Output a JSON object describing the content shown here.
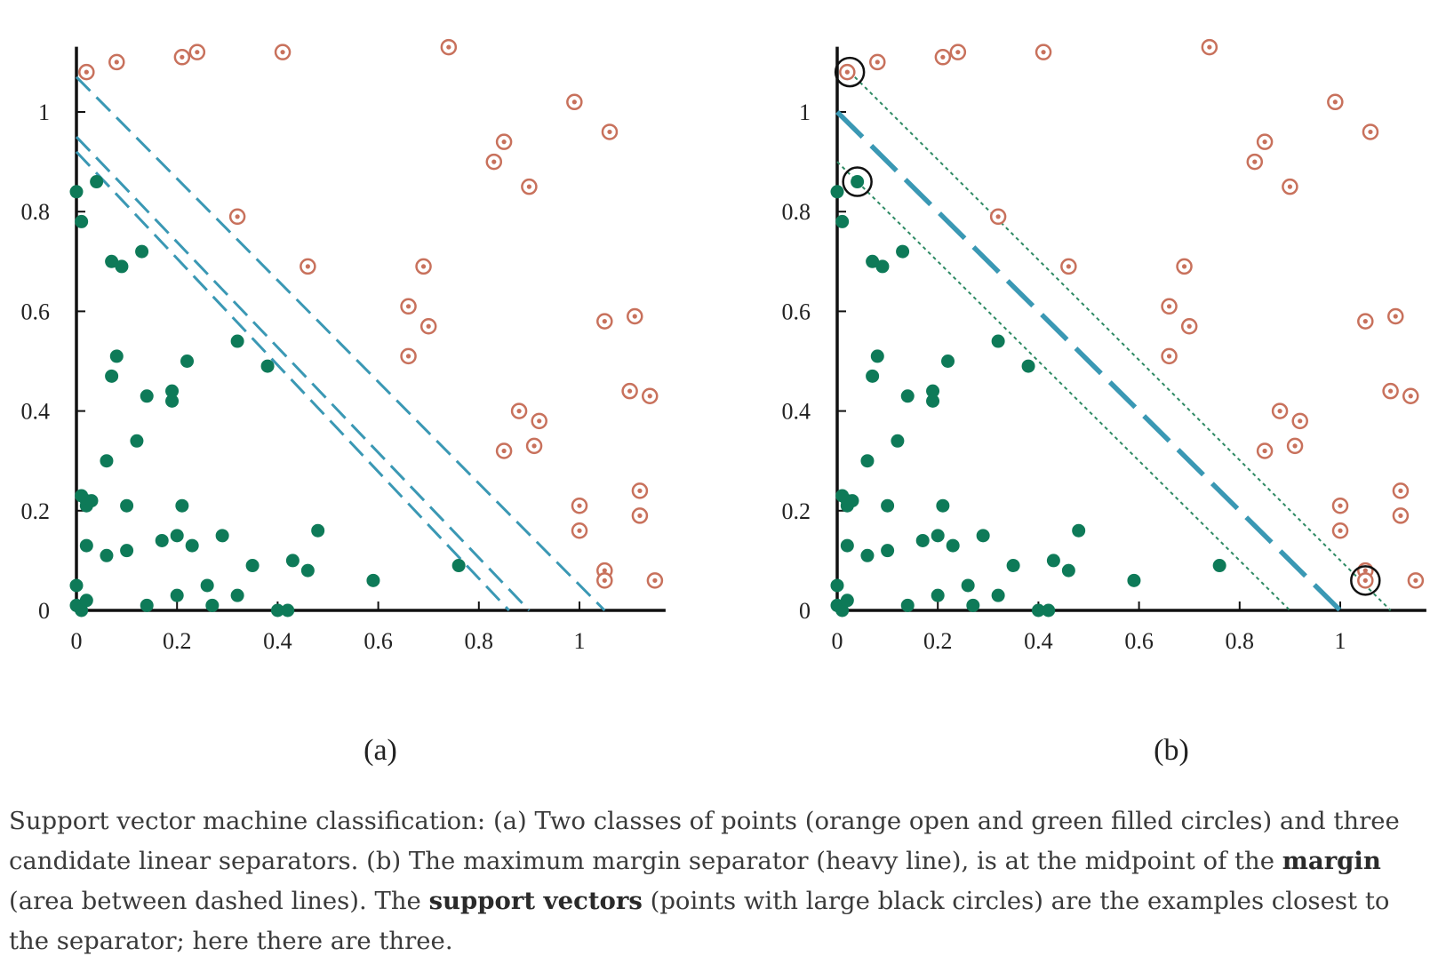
{
  "chart_data": [
    {
      "type": "scatter",
      "panel_label": "(a)",
      "xlim": [
        0,
        1.15
      ],
      "ylim": [
        0,
        1.12
      ],
      "x_ticks": [
        0,
        0.2,
        0.4,
        0.6,
        0.8,
        1
      ],
      "x_tick_labels": [
        "0",
        "0.2",
        "0.4",
        "0.6",
        "0.8",
        "1"
      ],
      "y_ticks": [
        0,
        0.2,
        0.4,
        0.6,
        0.8,
        1
      ],
      "y_tick_labels": [
        "0",
        "0.2",
        "0.4",
        "0.6",
        "0.8",
        "1"
      ],
      "series_open": [
        [
          0.02,
          1.08
        ],
        [
          0.08,
          1.1
        ],
        [
          0.21,
          1.11
        ],
        [
          0.24,
          1.12
        ],
        [
          0.41,
          1.12
        ],
        [
          0.74,
          1.13
        ],
        [
          0.99,
          1.02
        ],
        [
          1.06,
          0.96
        ],
        [
          0.83,
          0.9
        ],
        [
          0.85,
          0.94
        ],
        [
          0.9,
          0.85
        ],
        [
          0.32,
          0.79
        ],
        [
          0.46,
          0.69
        ],
        [
          0.69,
          0.69
        ],
        [
          0.66,
          0.61
        ],
        [
          0.7,
          0.57
        ],
        [
          0.66,
          0.51
        ],
        [
          1.05,
          0.58
        ],
        [
          1.11,
          0.59
        ],
        [
          0.88,
          0.4
        ],
        [
          0.92,
          0.38
        ],
        [
          0.85,
          0.32
        ],
        [
          0.91,
          0.33
        ],
        [
          1.1,
          0.44
        ],
        [
          1.14,
          0.43
        ],
        [
          1.0,
          0.21
        ],
        [
          1.0,
          0.16
        ],
        [
          1.12,
          0.24
        ],
        [
          1.12,
          0.19
        ],
        [
          1.05,
          0.08
        ],
        [
          1.05,
          0.06
        ],
        [
          1.15,
          0.06
        ]
      ],
      "series_filled": [
        [
          0.0,
          0.84
        ],
        [
          0.04,
          0.86
        ],
        [
          0.01,
          0.78
        ],
        [
          0.07,
          0.7
        ],
        [
          0.09,
          0.69
        ],
        [
          0.13,
          0.72
        ],
        [
          0.08,
          0.51
        ],
        [
          0.07,
          0.47
        ],
        [
          0.32,
          0.54
        ],
        [
          0.38,
          0.49
        ],
        [
          0.22,
          0.5
        ],
        [
          0.14,
          0.43
        ],
        [
          0.19,
          0.44
        ],
        [
          0.19,
          0.42
        ],
        [
          0.12,
          0.34
        ],
        [
          0.06,
          0.3
        ],
        [
          0.01,
          0.23
        ],
        [
          0.02,
          0.22
        ],
        [
          0.02,
          0.21
        ],
        [
          0.03,
          0.22
        ],
        [
          0.1,
          0.21
        ],
        [
          0.21,
          0.21
        ],
        [
          0.02,
          0.13
        ],
        [
          0.06,
          0.11
        ],
        [
          0.1,
          0.12
        ],
        [
          0.17,
          0.14
        ],
        [
          0.2,
          0.15
        ],
        [
          0.23,
          0.13
        ],
        [
          0.29,
          0.15
        ],
        [
          0.35,
          0.09
        ],
        [
          0.43,
          0.1
        ],
        [
          0.46,
          0.08
        ],
        [
          0.48,
          0.16
        ],
        [
          0.59,
          0.06
        ],
        [
          0.76,
          0.09
        ],
        [
          0.0,
          0.05
        ],
        [
          0.0,
          0.01
        ],
        [
          0.01,
          0.0
        ],
        [
          0.02,
          0.02
        ],
        [
          0.14,
          0.01
        ],
        [
          0.2,
          0.03
        ],
        [
          0.26,
          0.05
        ],
        [
          0.27,
          0.01
        ],
        [
          0.32,
          0.03
        ],
        [
          0.4,
          0.0
        ],
        [
          0.42,
          0.0
        ]
      ],
      "lines": [
        {
          "style": "dashed",
          "p1": [
            0,
            1.07
          ],
          "p2": [
            1.05,
            0
          ]
        },
        {
          "style": "dashed",
          "p1": [
            0,
            0.95
          ],
          "p2": [
            0.9,
            0
          ]
        },
        {
          "style": "dashed",
          "p1": [
            0,
            0.92
          ],
          "p2": [
            0.86,
            0
          ]
        }
      ]
    },
    {
      "type": "scatter",
      "panel_label": "(b)",
      "xlim": [
        0,
        1.15
      ],
      "ylim": [
        0,
        1.12
      ],
      "x_ticks": [
        0,
        0.2,
        0.4,
        0.6,
        0.8,
        1
      ],
      "x_tick_labels": [
        "0",
        "0.2",
        "0.4",
        "0.6",
        "0.8",
        "1"
      ],
      "y_ticks": [
        0,
        0.2,
        0.4,
        0.6,
        0.8,
        1
      ],
      "y_tick_labels": [
        "0",
        "0.2",
        "0.4",
        "0.6",
        "0.8",
        "1"
      ],
      "series_open": [
        [
          0.02,
          1.08
        ],
        [
          0.08,
          1.1
        ],
        [
          0.21,
          1.11
        ],
        [
          0.24,
          1.12
        ],
        [
          0.41,
          1.12
        ],
        [
          0.74,
          1.13
        ],
        [
          0.99,
          1.02
        ],
        [
          1.06,
          0.96
        ],
        [
          0.83,
          0.9
        ],
        [
          0.85,
          0.94
        ],
        [
          0.9,
          0.85
        ],
        [
          0.32,
          0.79
        ],
        [
          0.46,
          0.69
        ],
        [
          0.69,
          0.69
        ],
        [
          0.66,
          0.61
        ],
        [
          0.7,
          0.57
        ],
        [
          0.66,
          0.51
        ],
        [
          1.05,
          0.58
        ],
        [
          1.11,
          0.59
        ],
        [
          0.88,
          0.4
        ],
        [
          0.92,
          0.38
        ],
        [
          0.85,
          0.32
        ],
        [
          0.91,
          0.33
        ],
        [
          1.1,
          0.44
        ],
        [
          1.14,
          0.43
        ],
        [
          1.0,
          0.21
        ],
        [
          1.0,
          0.16
        ],
        [
          1.12,
          0.24
        ],
        [
          1.12,
          0.19
        ],
        [
          1.05,
          0.08
        ],
        [
          1.05,
          0.06
        ],
        [
          1.15,
          0.06
        ]
      ],
      "series_filled": [
        [
          0.0,
          0.84
        ],
        [
          0.04,
          0.86
        ],
        [
          0.01,
          0.78
        ],
        [
          0.07,
          0.7
        ],
        [
          0.09,
          0.69
        ],
        [
          0.13,
          0.72
        ],
        [
          0.08,
          0.51
        ],
        [
          0.07,
          0.47
        ],
        [
          0.32,
          0.54
        ],
        [
          0.38,
          0.49
        ],
        [
          0.22,
          0.5
        ],
        [
          0.14,
          0.43
        ],
        [
          0.19,
          0.44
        ],
        [
          0.19,
          0.42
        ],
        [
          0.12,
          0.34
        ],
        [
          0.06,
          0.3
        ],
        [
          0.01,
          0.23
        ],
        [
          0.02,
          0.22
        ],
        [
          0.02,
          0.21
        ],
        [
          0.03,
          0.22
        ],
        [
          0.1,
          0.21
        ],
        [
          0.21,
          0.21
        ],
        [
          0.02,
          0.13
        ],
        [
          0.06,
          0.11
        ],
        [
          0.1,
          0.12
        ],
        [
          0.17,
          0.14
        ],
        [
          0.2,
          0.15
        ],
        [
          0.23,
          0.13
        ],
        [
          0.29,
          0.15
        ],
        [
          0.35,
          0.09
        ],
        [
          0.43,
          0.1
        ],
        [
          0.46,
          0.08
        ],
        [
          0.48,
          0.16
        ],
        [
          0.59,
          0.06
        ],
        [
          0.76,
          0.09
        ],
        [
          0.0,
          0.05
        ],
        [
          0.0,
          0.01
        ],
        [
          0.01,
          0.0
        ],
        [
          0.02,
          0.02
        ],
        [
          0.14,
          0.01
        ],
        [
          0.2,
          0.03
        ],
        [
          0.26,
          0.05
        ],
        [
          0.27,
          0.01
        ],
        [
          0.32,
          0.03
        ],
        [
          0.4,
          0.0
        ],
        [
          0.42,
          0.0
        ]
      ],
      "lines": [
        {
          "style": "heavy",
          "p1": [
            0,
            1.0
          ],
          "p2": [
            1.0,
            0
          ]
        },
        {
          "style": "dotted",
          "p1": [
            0.025,
            1.08
          ],
          "p2": [
            1.1,
            0
          ]
        },
        {
          "style": "dotted",
          "p1": [
            0,
            0.9
          ],
          "p2": [
            0.9,
            0
          ]
        }
      ],
      "support_vectors": [
        [
          0.025,
          1.08
        ],
        [
          0.04,
          0.86
        ],
        [
          1.05,
          0.06
        ]
      ]
    }
  ],
  "colors": {
    "open_marker": "#c8715c",
    "filled_marker": "#0e7a58",
    "separator": "#3a98b4",
    "margin": "#2e8a64",
    "axis": "#111111",
    "support_ring": "#111111"
  },
  "caption": {
    "part1": "Support vector machine classification: (a) Two classes of points (orange open and green filled circles) and three candidate linear separators. (b) The maximum margin separator (heavy line), is at the midpoint of the ",
    "term1": "margin",
    "part2": " (area between dashed lines). The ",
    "term2": "support vectors",
    "part3": " (points with large black circles) are the examples closest to the separator; here there are three."
  }
}
